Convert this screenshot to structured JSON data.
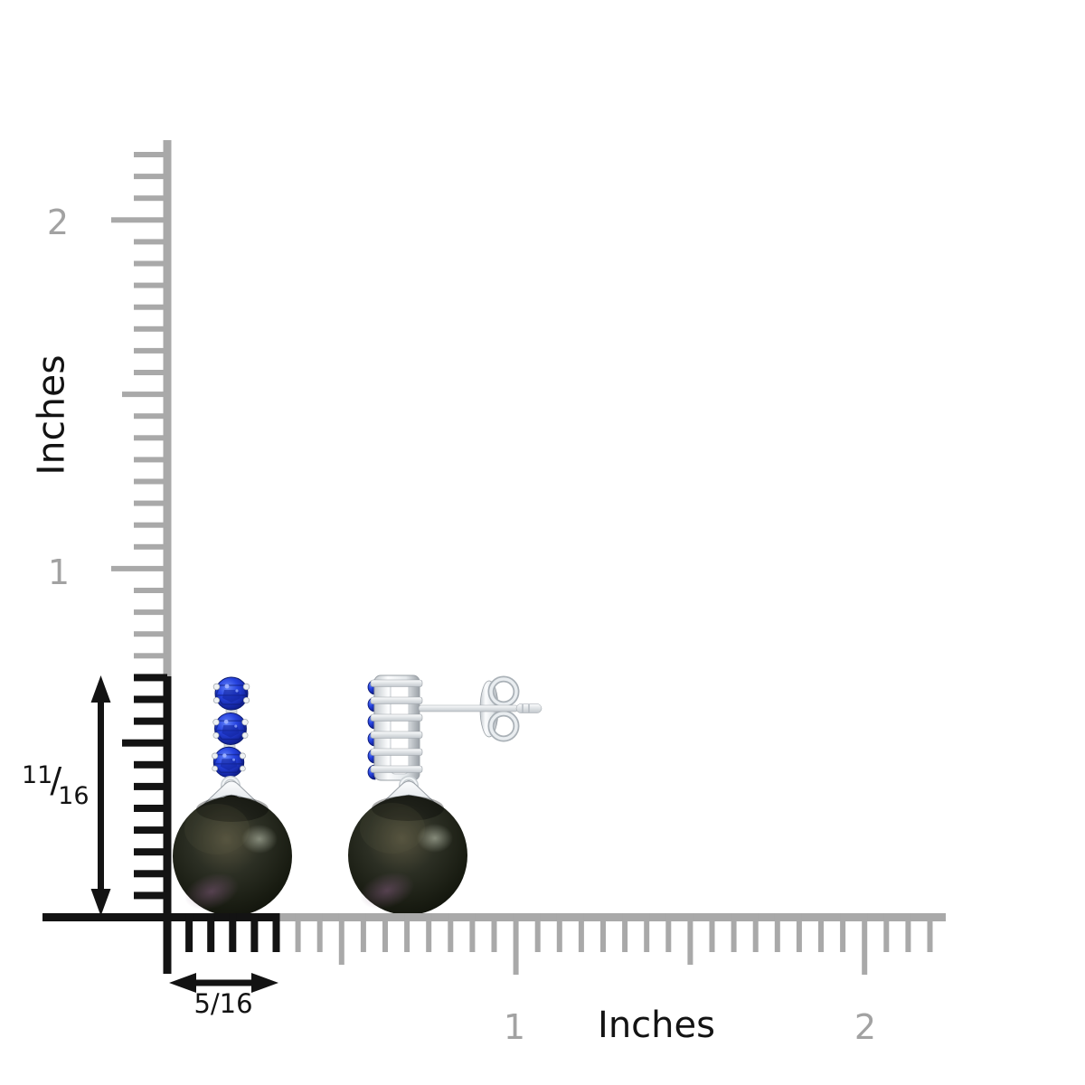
{
  "figure": {
    "type": "jewelry-size-guide",
    "views": [
      "front",
      "side"
    ]
  },
  "vertical_ruler": {
    "unit_label": "Inches",
    "tick_labels": [
      "2",
      "1"
    ]
  },
  "horizontal_ruler": {
    "unit_label": "Inches",
    "tick_labels": [
      "1",
      "2"
    ]
  },
  "measurements": {
    "height": {
      "numerator": "11",
      "slash": "/",
      "denominator": "16",
      "display": "11/16"
    },
    "width": {
      "text": "5/16"
    }
  },
  "colors": {
    "background": "#ffffff",
    "ruler_gray": "#a9a9a9",
    "ruler_label_gray": "#a2a2a2",
    "ink": "#131313",
    "sapphire_light": "#6383f8",
    "sapphire_core": "#2744e0",
    "sapphire_deep": "#13249f",
    "sapphire_edge": "#0c1a70",
    "pearl_light": "#56533f",
    "pearl_mid": "#2c2f24",
    "pearl_deep": "#191c12",
    "pearl_dark": "#0b0d07",
    "pearl_highlight": "#cdd4c0",
    "pearl_overtone": "#8a5f86",
    "metal_white": "#fbfcfd",
    "metal_light": "#e4e8eb",
    "metal_mid": "#c2c8cd",
    "metal_shadow": "#9aa0a6"
  }
}
